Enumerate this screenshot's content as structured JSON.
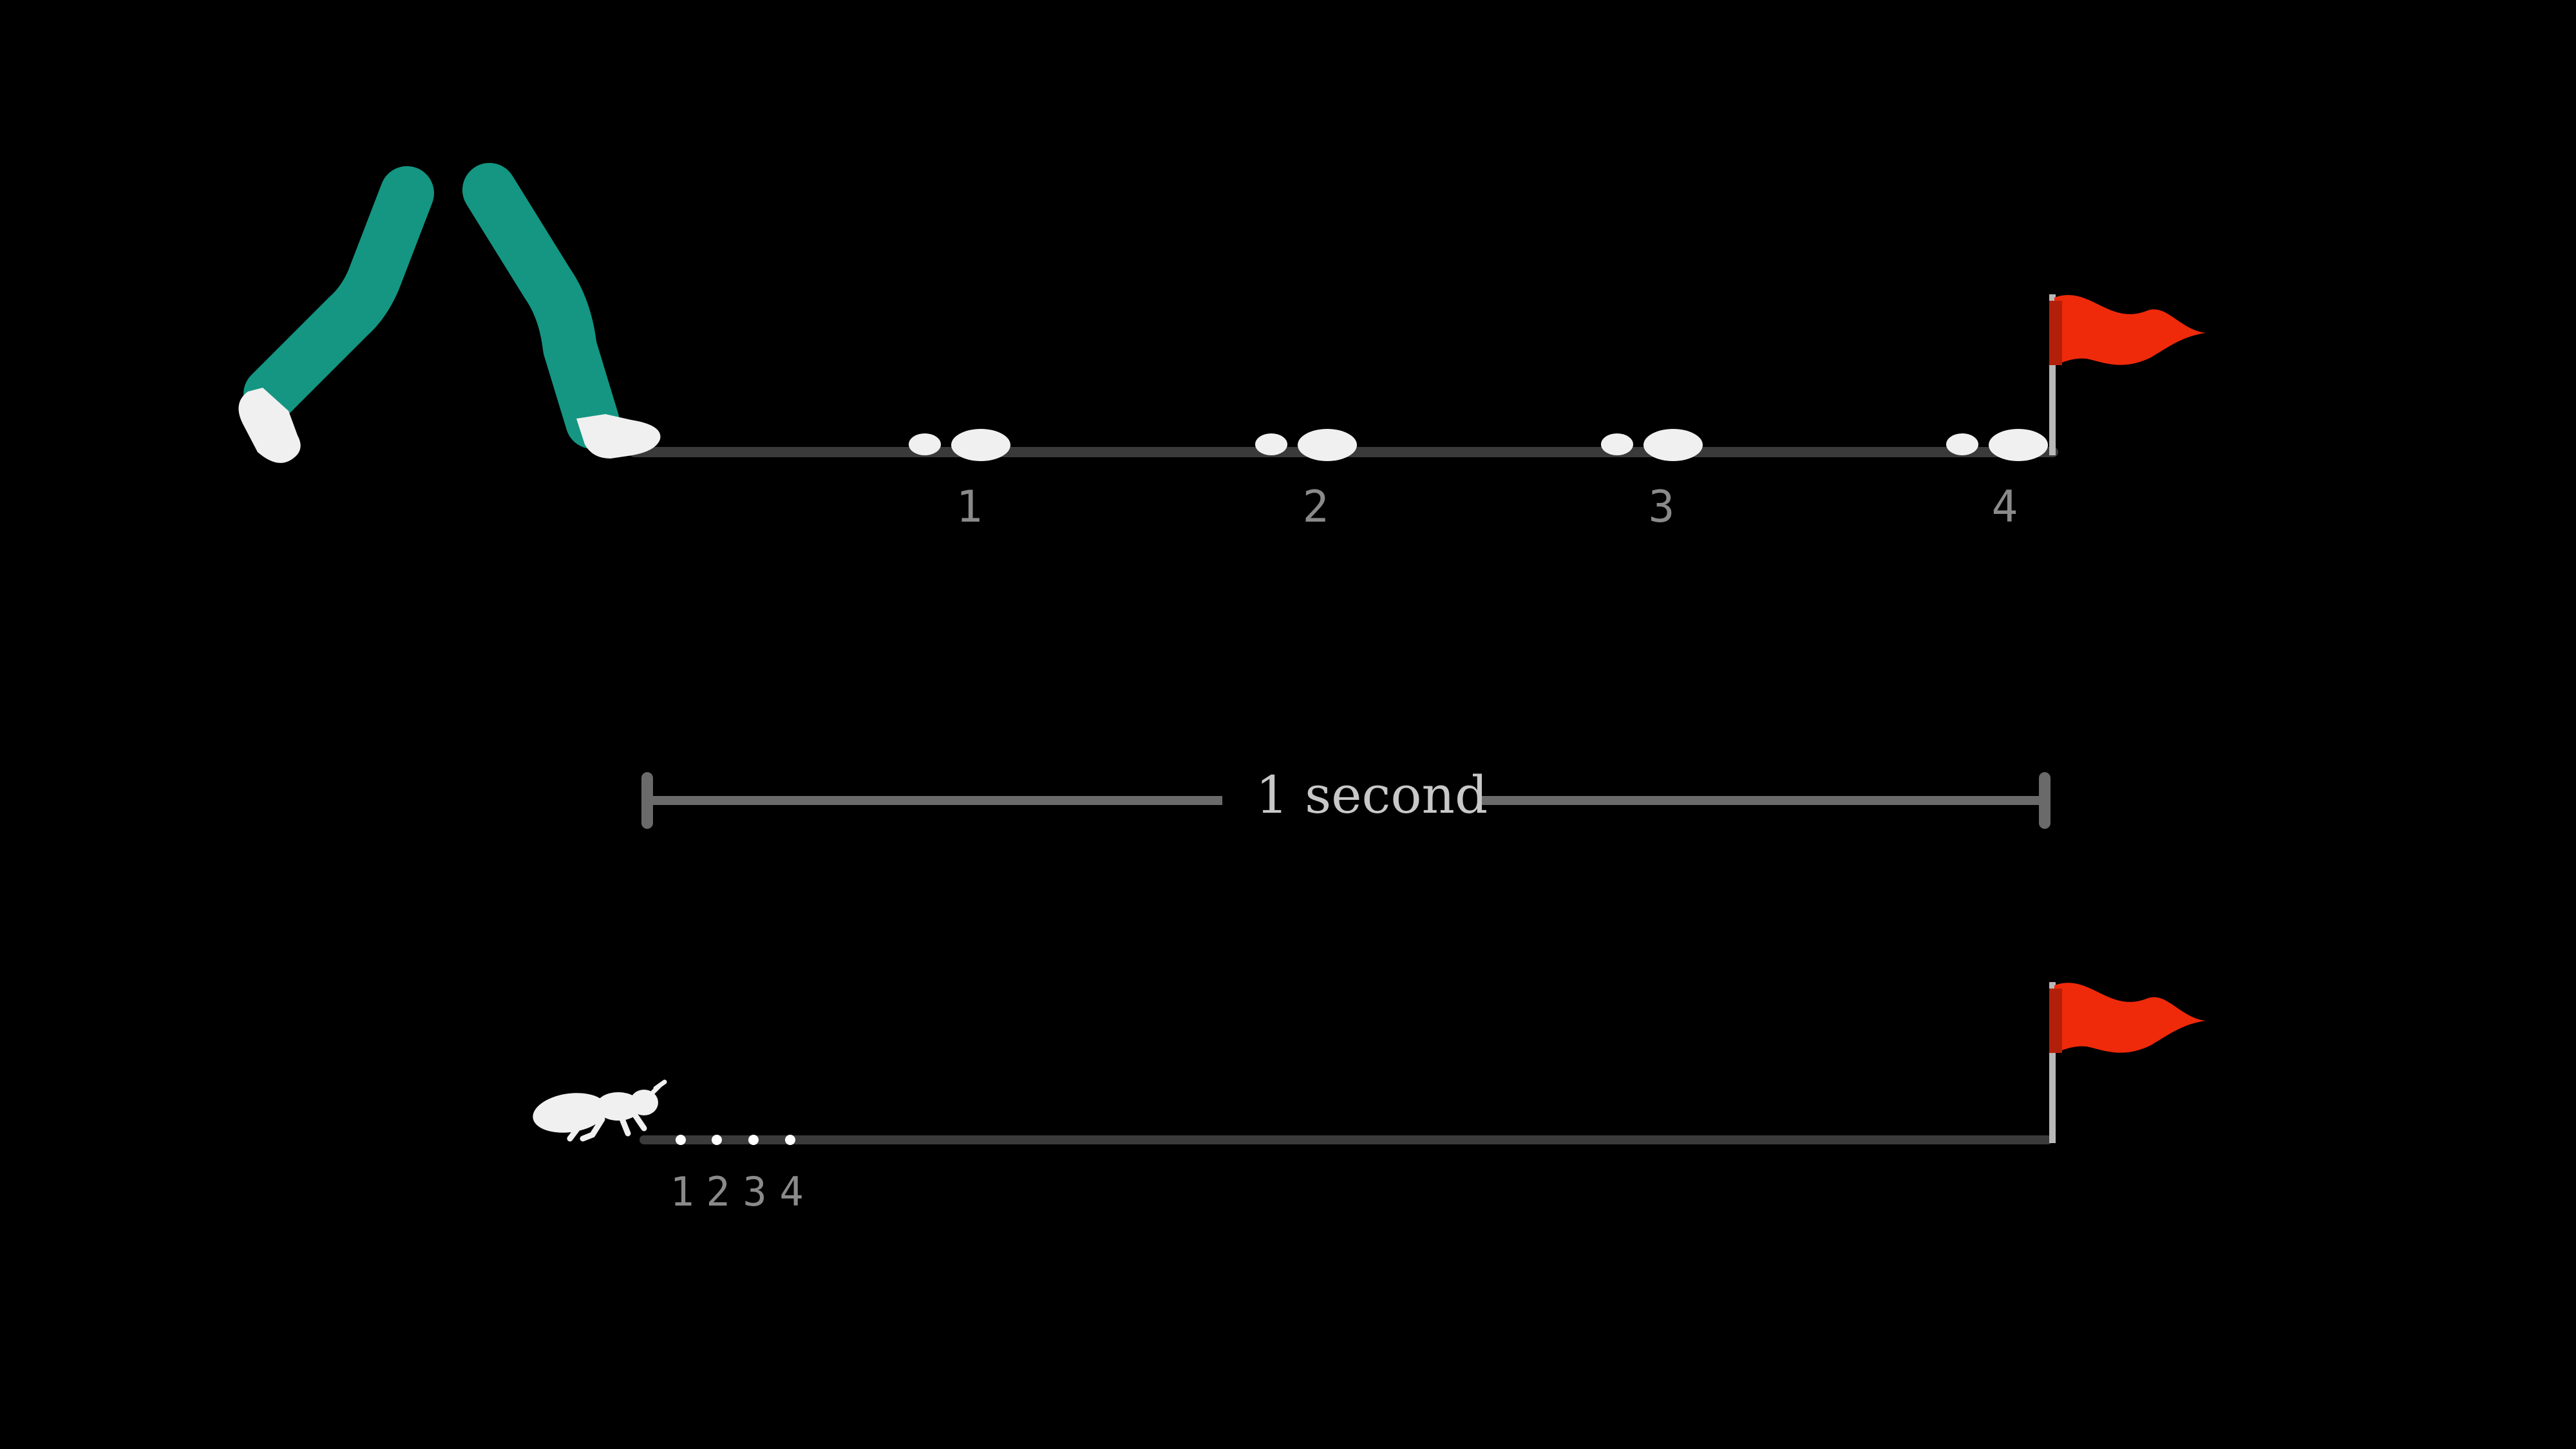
{
  "human": {
    "step_labels": [
      "1",
      "2",
      "3",
      "4"
    ],
    "leg_color": "#149682",
    "shoe_color": "#f0f0f0"
  },
  "time_scale": {
    "label": "1 second"
  },
  "ant": {
    "step_labels": [
      "1",
      "2",
      "3",
      "4"
    ],
    "body_color": "#f0f0f0"
  },
  "colors": {
    "track": "#3a3a3a",
    "flag": "#ee2a0a",
    "flag_pole": "#b8b8b8",
    "label": "#8a8a8a"
  },
  "icons": {
    "goal": "red-flag-icon",
    "footprint": "footprint-icon",
    "walker": "walking-legs-icon",
    "ant": "ant-icon"
  }
}
